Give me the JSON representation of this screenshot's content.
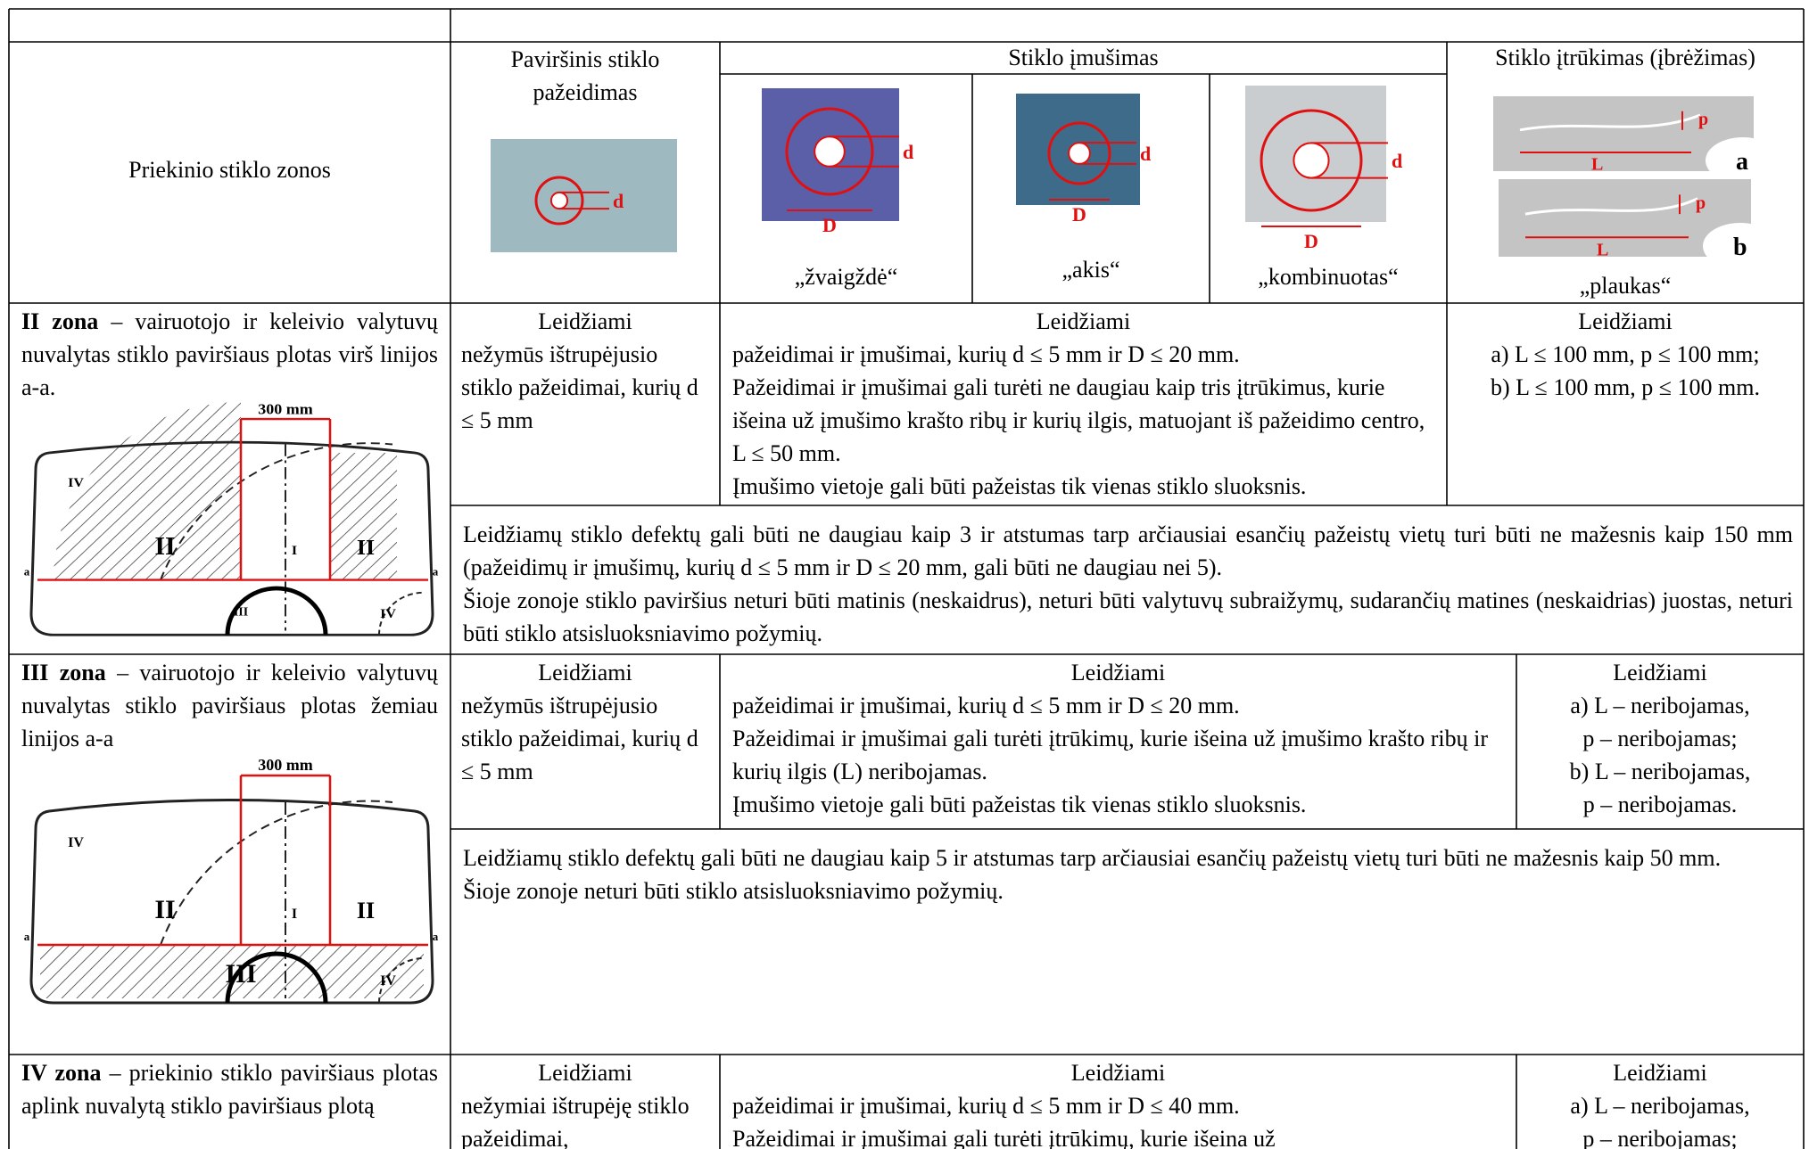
{
  "table": {
    "columns": {
      "zones": "Priekinio stiklo zonos",
      "surface": {
        "title": "Paviršinis stiklo pažeidimas",
        "photo_label": "d"
      },
      "impact": {
        "title": "Stiklo įmušimas",
        "photo_labels": [
          "d",
          "D"
        ],
        "types": [
          "„žvaigždė“",
          "„akis“",
          "„kombinuotas“"
        ]
      },
      "crack": {
        "title": "Stiklo įtrūkimas (įbrėžimas)",
        "photo_labels": [
          "p",
          "L",
          "a",
          "b"
        ],
        "type": "„plaukas“"
      }
    },
    "diagram": {
      "dimension": "300 mm",
      "labels": [
        "IV",
        "II",
        "I",
        "II",
        "III",
        "IV",
        "a",
        "a"
      ]
    },
    "rows": [
      {
        "zone_bold": "II zona",
        "zone_text": "– vairuotojo ir keleivio valytuvų nuvalytas stiklo paviršiaus plotas virš linijos a-a.",
        "surface": {
          "heading": "Leidžiami",
          "text": "nežymūs ištrupėjusio stiklo pažeidimai, kurių d ≤ 5 mm"
        },
        "impact": {
          "heading": "Leidžiami",
          "lines": [
            "pažeidimai ir įmušimai, kurių d ≤ 5 mm ir D ≤ 20 mm.",
            "Pažeidimai ir įmušimai gali turėti ne daugiau kaip tris įtrūkimus, kurie išeina už įmušimo krašto ribų ir kurių ilgis, matuojant iš pažeidimo centro, L ≤ 50 mm.",
            "Įmušimo vietoje gali būti pažeistas tik vienas stiklo sluoksnis."
          ]
        },
        "crack": {
          "heading": "Leidžiami",
          "lines": [
            "a) L ≤ 100 mm, p ≤ 100 mm;",
            "b) L ≤ 100 mm, p ≤ 100 mm."
          ]
        },
        "note": [
          "Leidžiamų stiklo defektų gali būti ne daugiau kaip 3 ir atstumas tarp arčiausiai esančių pažeistų vietų turi būti ne mažesnis kaip 150 mm (pažeidimų ir įmušimų, kurių d ≤ 5 mm ir D ≤ 20 mm, gali būti ne daugiau nei 5).",
          "Šioje zonoje stiklo paviršius neturi būti matinis (neskaidrus), neturi būti valytuvų subraižymų, sudarančių matines (neskaidrias) juostas, neturi būti stiklo atsisluoksniavimo požymių."
        ]
      },
      {
        "zone_bold": "III zona",
        "zone_text": "– vairuotojo ir keleivio valytuvų nuvalytas stiklo paviršiaus plotas žemiau linijos a-a",
        "surface": {
          "heading": "Leidžiami",
          "text": "nežymūs ištrupėjusio stiklo pažeidimai, kurių d ≤ 5 mm"
        },
        "impact": {
          "heading": "Leidžiami",
          "lines": [
            "pažeidimai ir įmušimai, kurių d ≤ 5 mm ir D ≤ 20 mm.",
            "Pažeidimai ir įmušimai gali turėti įtrūkimų, kurie išeina už įmušimo krašto ribų ir kurių ilgis (L) neribojamas.",
            "Įmušimo vietoje gali būti pažeistas tik vienas stiklo sluoksnis."
          ]
        },
        "crack": {
          "heading": "Leidžiami",
          "lines": [
            "a) L – neribojamas,",
            "p – neribojamas;",
            "b) L – neribojamas,",
            "p – neribojamas."
          ]
        },
        "note": [
          "Leidžiamų stiklo defektų gali būti ne daugiau kaip 5 ir atstumas tarp arčiausiai esančių pažeistų vietų turi būti ne mažesnis kaip 50 mm.",
          "Šioje zonoje neturi būti stiklo atsisluoksniavimo požymių."
        ]
      },
      {
        "zone_bold": "IV zona",
        "zone_text": "– priekinio stiklo paviršiaus plotas aplink nuvalytą stiklo paviršiaus plotą",
        "surface": {
          "heading": "Leidžiami",
          "text": "nežymiai ištrupėję stiklo pažeidimai,"
        },
        "impact": {
          "heading": "Leidžiami",
          "lines": [
            "pažeidimai ir įmušimai, kurių d ≤ 5 mm ir D ≤ 40 mm.",
            "Pažeidimai ir įmušimai gali turėti įtrūkimų, kurie išeina už"
          ]
        },
        "crack": {
          "heading": "Leidžiami",
          "lines": [
            "a) L – neribojamas,",
            "p – neribojamas;"
          ]
        }
      }
    ]
  }
}
